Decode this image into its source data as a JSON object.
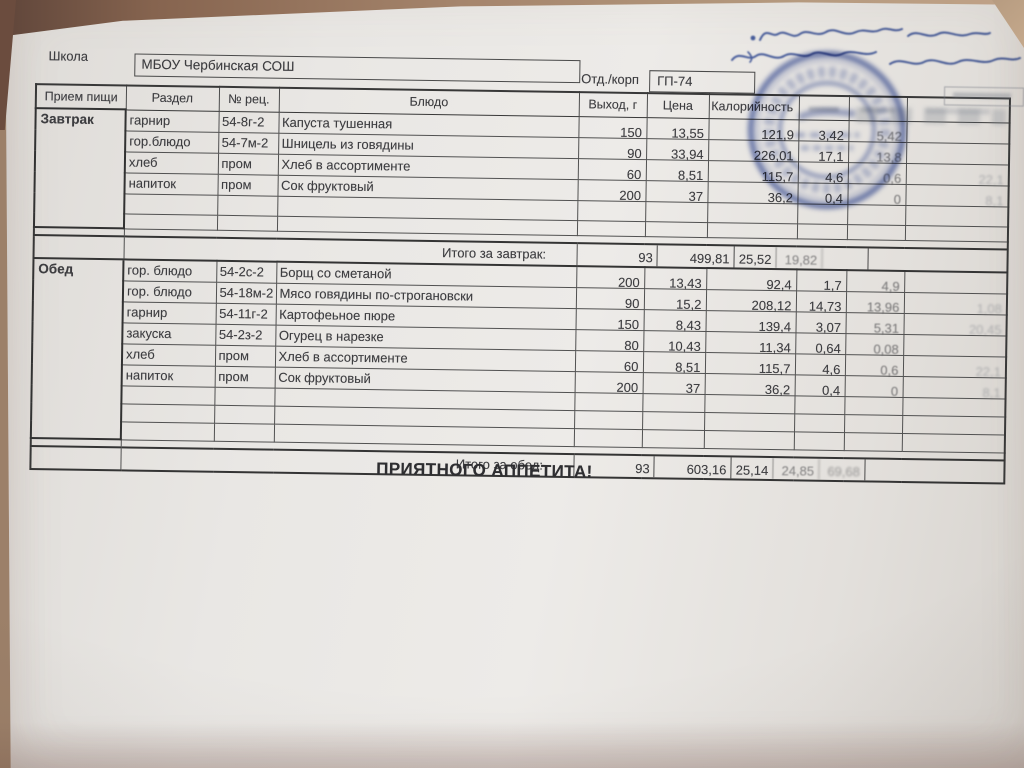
{
  "form": {
    "school_label": "Школа",
    "school_value": "МБОУ Чербинская СОШ",
    "dept_label": "Отд./корп",
    "dept_value": "ГП-74"
  },
  "table": {
    "headers": {
      "meal": "Прием пищи",
      "section": "Раздел",
      "recipe": "№ рец.",
      "dish": "Блюдо",
      "out": "Выход, г",
      "price": "Цена",
      "cal": "Калорийность",
      "protein": "",
      "fat": "",
      "carbs": ""
    },
    "sections": [
      {
        "meal": "Завтрак",
        "rows": [
          {
            "section": "гарнир",
            "recipe": "54-8г-2",
            "dish": "Капуста тушенная",
            "out": "150",
            "price": "13,55",
            "cal": "121,9",
            "protein": "3,42",
            "fat": "5,42",
            "carbs": ""
          },
          {
            "section": "гор.блюдо",
            "recipe": "54-7м-2",
            "dish": "Шницель из говядины",
            "out": "90",
            "price": "33,94",
            "cal": "226,01",
            "protein": "17,1",
            "fat": "13,8",
            "carbs": ""
          },
          {
            "section": "хлеб",
            "recipe": "пром",
            "dish": "Хлеб в ассортименте",
            "out": "60",
            "price": "8,51",
            "cal": "115,7",
            "protein": "4,6",
            "fat": "0,6",
            "carbs": "22,1"
          },
          {
            "section": "напиток",
            "recipe": "пром",
            "dish": "Сок фруктовый",
            "out": "200",
            "price": "37",
            "cal": "36,2",
            "protein": "0,4",
            "fat": "0",
            "carbs": "8,1"
          }
        ],
        "total": {
          "label": "Итого за завтрак:",
          "price": "93",
          "cal": "499,81",
          "protein": "25,52",
          "fat": "19,82",
          "carbs": ""
        }
      },
      {
        "meal": "Обед",
        "rows": [
          {
            "section": "гор. блюдо",
            "recipe": "54-2с-2",
            "dish": "Борщ со сметаной",
            "out": "200",
            "price": "13,43",
            "cal": "92,4",
            "protein": "1,7",
            "fat": "4,9",
            "carbs": ""
          },
          {
            "section": "гор. блюдо",
            "recipe": "54-18м-2",
            "dish": "Мясо говядины по-строгановски",
            "out": "90",
            "price": "15,2",
            "cal": "208,12",
            "protein": "14,73",
            "fat": "13,96",
            "carbs": "1,08"
          },
          {
            "section": "гарнир",
            "recipe": "54-11г-2",
            "dish": "Картофеьное пюре",
            "out": "150",
            "price": "8,43",
            "cal": "139,4",
            "protein": "3,07",
            "fat": "5,31",
            "carbs": "20,45"
          },
          {
            "section": "закуска",
            "recipe": "54-2з-2",
            "dish": "Огурец в нарезке",
            "out": "80",
            "price": "10,43",
            "cal": "11,34",
            "protein": "0,64",
            "fat": "0,08",
            "carbs": ""
          },
          {
            "section": "хлеб",
            "recipe": "пром",
            "dish": "Хлеб в ассортименте",
            "out": "60",
            "price": "8,51",
            "cal": "115,7",
            "protein": "4,6",
            "fat": "0,6",
            "carbs": "22,1"
          },
          {
            "section": "напиток",
            "recipe": "пром",
            "dish": "Сок фруктовый",
            "out": "200",
            "price": "37",
            "cal": "36,2",
            "protein": "0,4",
            "fat": "0",
            "carbs": "8,1"
          }
        ],
        "total": {
          "label": "Итого за обед:",
          "price": "93",
          "cal": "603,16",
          "protein": "25,14",
          "fat": "24,85",
          "carbs": "69,68"
        }
      }
    ]
  },
  "footer": {
    "bon_appetit": "ПРИЯТНОГО АППЕТИТА!"
  },
  "colors": {
    "stamp_ink": "#3f56a3",
    "pen_ink": "#2e4a9e",
    "paper": "#e9e7e4",
    "desk": "#a5856c"
  }
}
